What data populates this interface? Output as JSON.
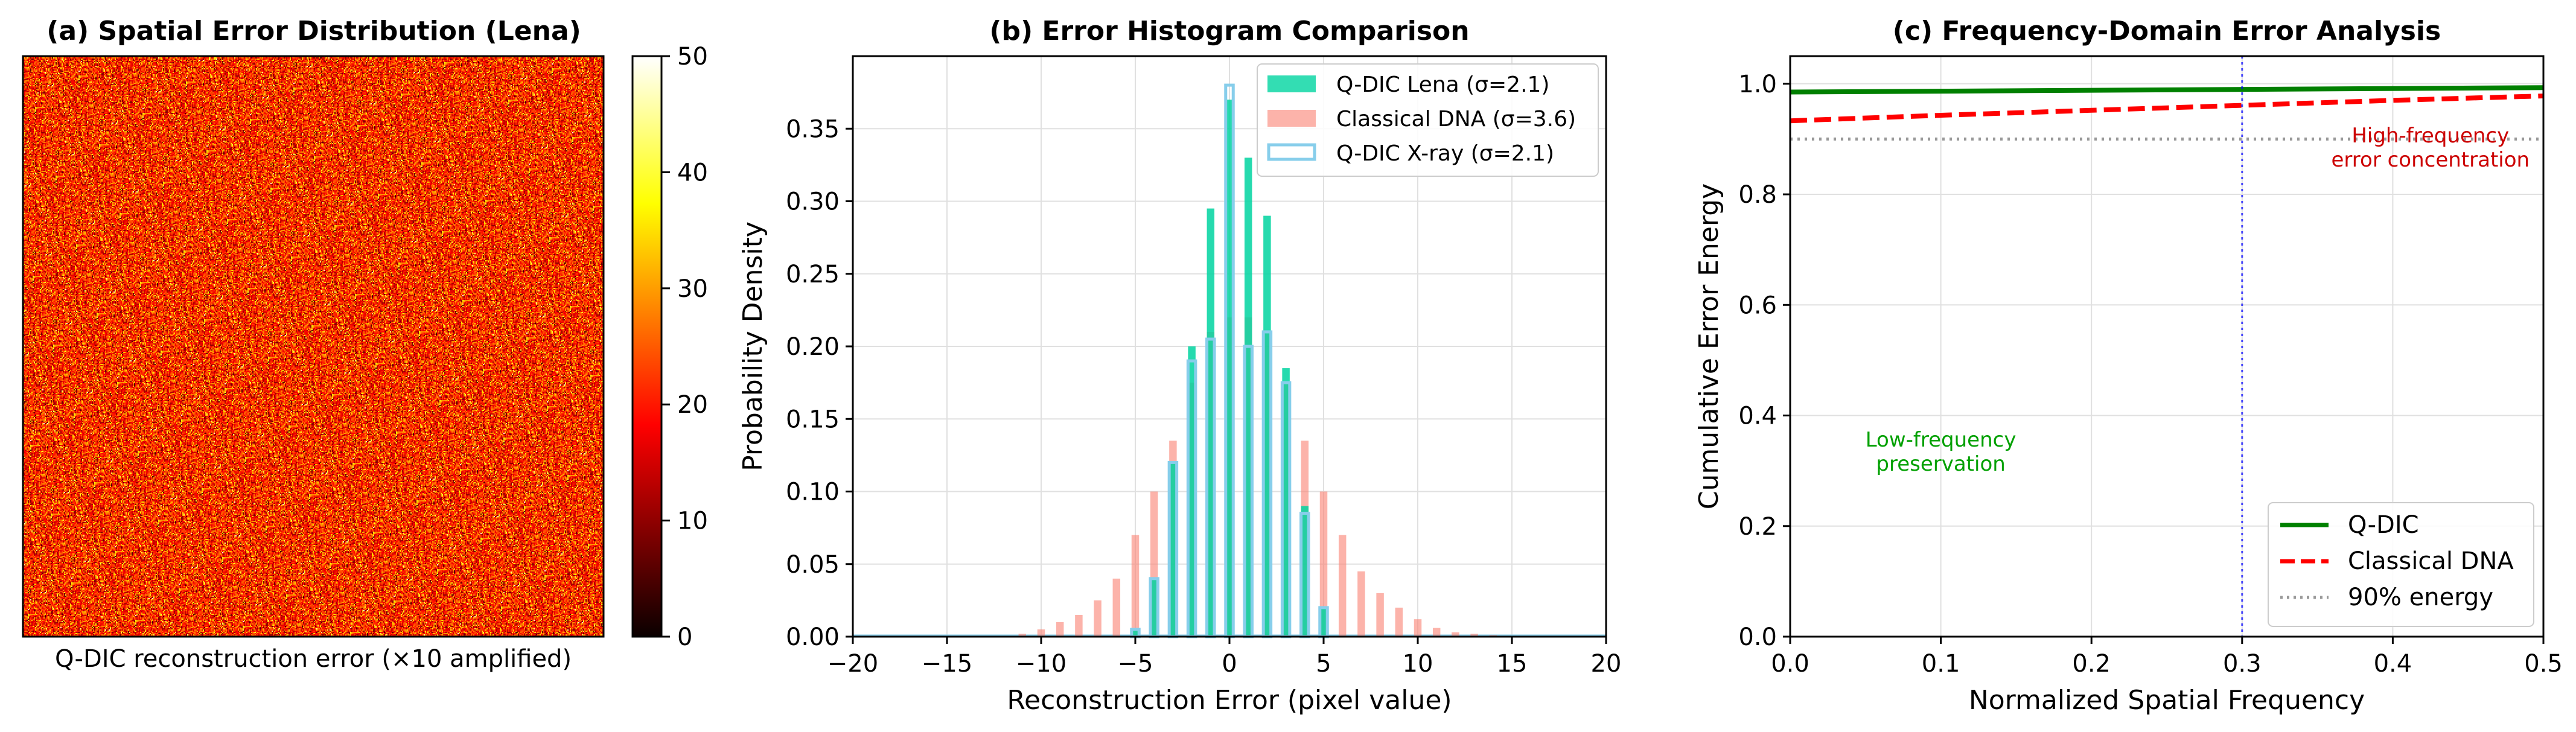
{
  "chart_data": [
    {
      "type": "heatmap",
      "title": "(a) Spatial Error Distribution (Lena)",
      "xlabel": "Q-DIC reconstruction error (×10 amplified)",
      "colormap": "hot",
      "colorbar": {
        "min": 0,
        "max": 50,
        "ticks": [
          "0",
          "10",
          "20",
          "30",
          "40",
          "50"
        ]
      },
      "value_range_shown": [
        5,
        50
      ],
      "dominant_value": 20
    },
    {
      "type": "bar",
      "title": "(b) Error Histogram Comparison",
      "xlabel": "Reconstruction Error (pixel value)",
      "ylabel": "Probability Density",
      "xlim": [
        -20,
        20
      ],
      "ylim": [
        0,
        0.4
      ],
      "xticks": [
        "−20",
        "−15",
        "−10",
        "−5",
        "0",
        "5",
        "10",
        "15",
        "20"
      ],
      "yticks": [
        "0.00",
        "0.05",
        "0.10",
        "0.15",
        "0.20",
        "0.25",
        "0.30",
        "0.35"
      ],
      "grid": true,
      "legend": "top-right",
      "series": [
        {
          "name": "Q-DIC Lena (σ=2.1)",
          "color": "#00d4a0",
          "x": [
            -5,
            -4,
            -3,
            -2,
            -1,
            0,
            1,
            2,
            3,
            4,
            5
          ],
          "values": [
            0.005,
            0.04,
            0.12,
            0.2,
            0.295,
            0.37,
            0.33,
            0.29,
            0.185,
            0.09,
            0.02
          ]
        },
        {
          "name": "Classical DNA (σ=3.6)",
          "color": "#fa8072",
          "x": [
            -11,
            -10,
            -9,
            -8,
            -7,
            -6,
            -5,
            -4,
            -3,
            -2,
            -1,
            0,
            1,
            2,
            3,
            4,
            5,
            6,
            7,
            8,
            9,
            10,
            11,
            12,
            13,
            14
          ],
          "values": [
            0.002,
            0.005,
            0.01,
            0.015,
            0.025,
            0.04,
            0.07,
            0.1,
            0.135,
            0.175,
            0.21,
            0.22,
            0.22,
            0.21,
            0.175,
            0.135,
            0.1,
            0.07,
            0.045,
            0.03,
            0.02,
            0.012,
            0.006,
            0.003,
            0.002,
            0.001
          ]
        },
        {
          "name": "Q-DIC X-ray (σ=2.1)",
          "color": "#87ceeb",
          "x": [
            -5,
            -4,
            -3,
            -2,
            -1,
            0,
            1,
            2,
            3,
            4,
            5
          ],
          "values": [
            0.005,
            0.04,
            0.12,
            0.19,
            0.205,
            0.38,
            0.2,
            0.21,
            0.175,
            0.085,
            0.02
          ]
        }
      ]
    },
    {
      "type": "line",
      "title": "(c) Frequency-Domain Error Analysis",
      "xlabel": "Normalized Spatial Frequency",
      "ylabel": "Cumulative Error Energy",
      "xlim": [
        0,
        0.5
      ],
      "ylim": [
        0,
        1.05
      ],
      "xticks": [
        "0.0",
        "0.1",
        "0.2",
        "0.3",
        "0.4",
        "0.5"
      ],
      "yticks": [
        "0.0",
        "0.2",
        "0.4",
        "0.6",
        "0.8",
        "1.0"
      ],
      "grid": true,
      "legend": "bottom-right",
      "series": [
        {
          "name": "Q-DIC",
          "color": "#008000",
          "style": "solid",
          "x": [
            0,
            0.5
          ],
          "values": [
            0.985,
            0.993
          ]
        },
        {
          "name": "Classical DNA",
          "color": "#ff0000",
          "style": "dashed",
          "x": [
            0,
            0.1,
            0.2,
            0.3,
            0.4,
            0.5
          ],
          "values": [
            0.933,
            0.943,
            0.952,
            0.961,
            0.97,
            0.978
          ]
        },
        {
          "name": "90% energy",
          "color": "#999999",
          "style": "dotted",
          "x": [
            0,
            0.5
          ],
          "values": [
            0.9,
            0.9
          ]
        }
      ],
      "vline": {
        "x": 0.3,
        "color": "#0000ff"
      },
      "annotations": [
        {
          "text_lines": [
            "High-frequency",
            "error concentration"
          ],
          "x": 0.425,
          "y": 0.885,
          "color": "#cc0000"
        },
        {
          "text_lines": [
            "Low-frequency",
            "preservation"
          ],
          "x": 0.1,
          "y": 0.335,
          "color": "#00a000"
        }
      ]
    }
  ]
}
